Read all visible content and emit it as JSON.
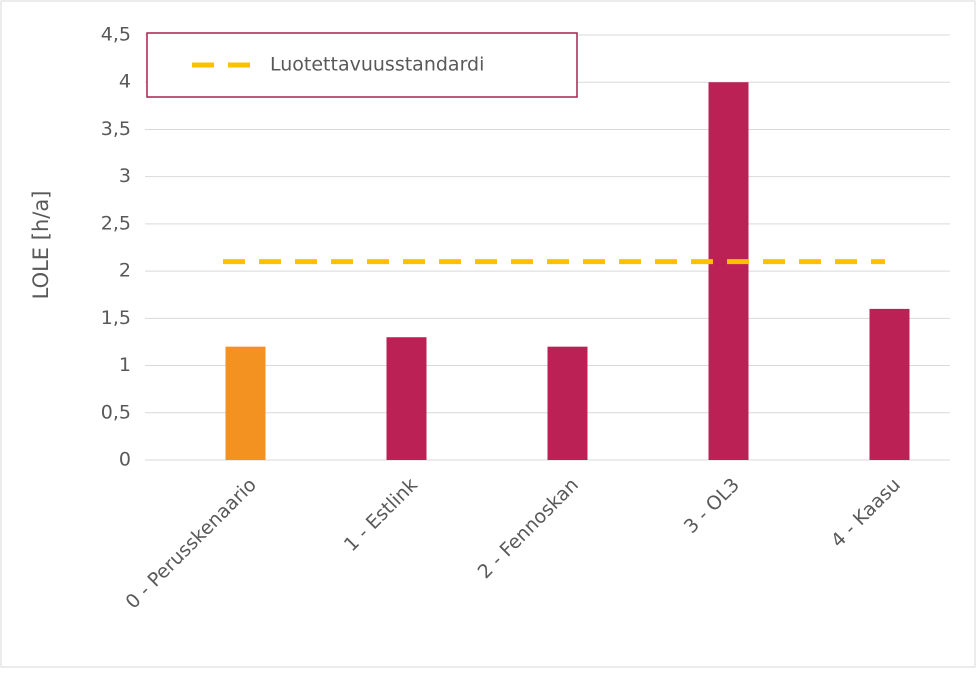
{
  "chart_data": {
    "type": "bar",
    "y_label": "LOLE [h/a]",
    "categories": [
      "0 - Perusskenaario",
      "1 - Estlink",
      "2 - Fennoskan",
      "3 - OL3",
      "4 - Kaasu"
    ],
    "values": [
      1.2,
      1.3,
      1.2,
      4,
      1.6
    ],
    "colors": [
      "#f39221",
      "#bc2155",
      "#bc2155",
      "#bc2155",
      "#bc2155"
    ],
    "reference_line": {
      "name": "Luotettavuusstandardi",
      "value": 2.1,
      "color": "#ffc000"
    },
    "ylim": [
      0,
      4.5
    ],
    "yticks": [
      0,
      {
        "value": 0.5,
        "label": "0,5"
      },
      1,
      {
        "value": 1.5,
        "label": "1,5"
      },
      2,
      {
        "value": 2.5,
        "label": "2,5"
      },
      3,
      {
        "value": 3.5,
        "label": "3,5"
      },
      4,
      {
        "value": 4.5,
        "label": "4,5"
      }
    ],
    "grid": true,
    "legend": "top-left"
  }
}
